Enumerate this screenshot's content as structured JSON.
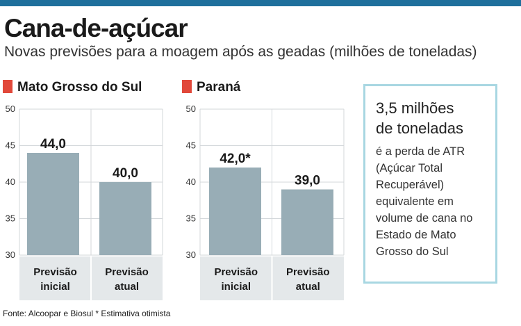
{
  "header": {
    "title": "Cana-de-açúcar",
    "subtitle": "Novas previsões para a moagem após as geadas (milhões de toneladas)"
  },
  "panels": [
    {
      "title": "Mato Grosso do Sul"
    },
    {
      "title": "Paraná"
    }
  ],
  "chart_data": [
    {
      "type": "bar",
      "title": "Mato Grosso do Sul",
      "categories": [
        [
          "Previsão",
          "inicial"
        ],
        [
          "Previsão",
          "atual"
        ]
      ],
      "values": [
        44.0,
        40.0
      ],
      "value_labels": [
        "44,0",
        "40,0"
      ],
      "ylim": [
        30,
        50
      ],
      "yticks": [
        30,
        35,
        40,
        45,
        50
      ],
      "grid": true,
      "bar_color": "#98adb6"
    },
    {
      "type": "bar",
      "title": "Paraná",
      "categories": [
        [
          "Previsão",
          "inicial"
        ],
        [
          "Previsão",
          "atual"
        ]
      ],
      "values": [
        42.0,
        39.0
      ],
      "value_labels": [
        "42,0*",
        "39,0"
      ],
      "ylim": [
        30,
        50
      ],
      "yticks": [
        30,
        35,
        40,
        45,
        50
      ],
      "grid": true,
      "bar_color": "#98adb6"
    }
  ],
  "info_box": {
    "headline_line1": "3,5 milhões",
    "headline_line2": "de toneladas",
    "body_lines": [
      "é a perda de ATR",
      "(Açúcar Total",
      "Recuperável)",
      "equivalente em",
      "volume de cana no",
      "Estado de Mato",
      "Grosso do Sul"
    ]
  },
  "footnote": "Fonte: Alcoopar e Biosul * Estimativa otimista",
  "colors": {
    "top_bar": "#1f6f9c",
    "marker": "#e1483a",
    "bars": "#98adb6",
    "category_band": "#e4e8ea",
    "box_border": "#a8d7e2"
  }
}
